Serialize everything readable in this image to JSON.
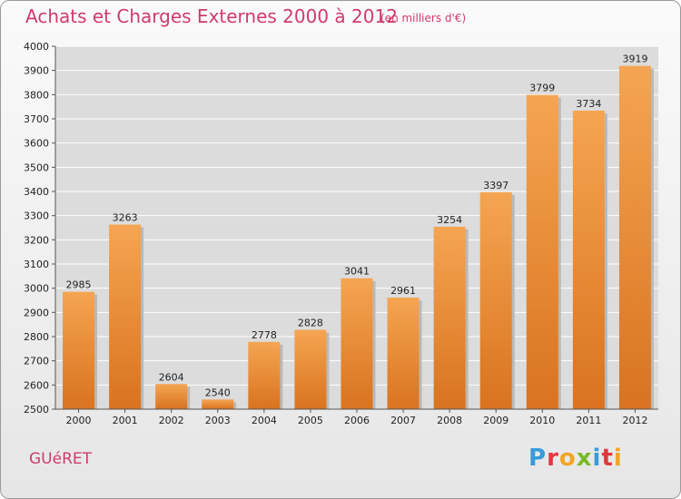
{
  "header": {
    "title": "Achats et Charges Externes 2000 à 2012",
    "subtitle": "(en milliers d'€)"
  },
  "footer": {
    "city": "GUéRET",
    "logo": {
      "text": "Proxiti",
      "letter_colors": [
        "#3a9ad9",
        "#e0393e",
        "#f2a526",
        "#7ab928",
        "#3a9ad9",
        "#e0393e",
        "#f2a526"
      ]
    }
  },
  "chart_data": {
    "type": "bar",
    "title": "Achats et Charges Externes 2000 à 2012",
    "subtitle": "(en milliers d'€)",
    "categories": [
      "2000",
      "2001",
      "2002",
      "2003",
      "2004",
      "2005",
      "2006",
      "2007",
      "2008",
      "2009",
      "2010",
      "2011",
      "2012"
    ],
    "values": [
      2985,
      3263,
      2604,
      2540,
      2778,
      2828,
      3041,
      2961,
      3254,
      3397,
      3799,
      3734,
      3919
    ],
    "ylim": [
      2500,
      4000
    ],
    "yticks": [
      2500,
      2600,
      2700,
      2800,
      2900,
      3000,
      3100,
      3200,
      3300,
      3400,
      3500,
      3600,
      3700,
      3800,
      3900,
      4000
    ],
    "grid": true,
    "colors": {
      "bar_light": "#f5a552",
      "bar_dark": "#d9731f",
      "text": "#222222",
      "axis": "#555555",
      "grid": "#ffffff",
      "plot_bg": "#dcdcdc"
    }
  }
}
